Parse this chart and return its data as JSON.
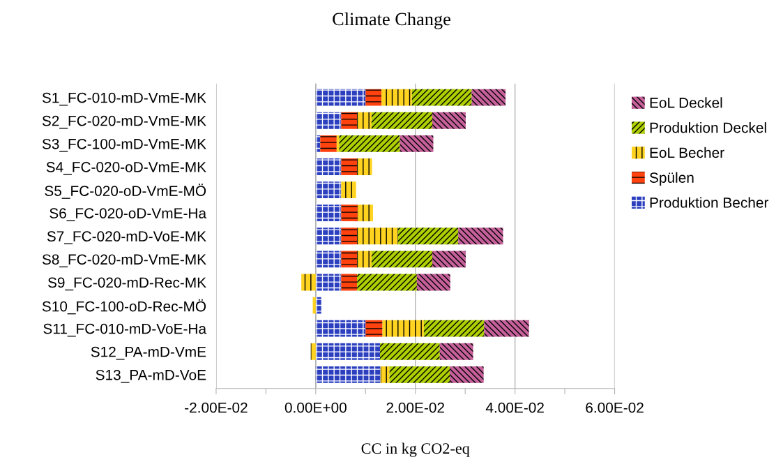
{
  "chart_data": {
    "type": "bar",
    "orientation": "horizontal",
    "stacked": true,
    "title": "Climate Change",
    "xlabel": "CC in kg CO2-eq",
    "categories": [
      "S1_FC-010-mD-VmE-MK",
      "S2_FC-020-mD-VmE-MK",
      "S3_FC-100-mD-VmE-MK",
      "S4_FC-020-oD-VmE-MK",
      "S5_FC-020-oD-VmE-MÖ",
      "S6_FC-020-oD-VmE-Ha",
      "S7_FC-020-mD-VoE-MK",
      "S8_FC-020-mD-VmE-MK",
      "S9_FC-020-mD-Rec-MK",
      "S10_FC-100-oD-Rec-MÖ",
      "S11_FC-010-mD-VoE-Ha",
      "S12_PA-mD-VmE",
      "S13_PA-mD-VoE"
    ],
    "series": [
      {
        "name": "Produktion Becher",
        "color": "#2b3fbf",
        "values": [
          0.01,
          0.0051,
          0.0009,
          0.0051,
          0.0051,
          0.0051,
          0.0051,
          0.0051,
          0.0051,
          0.0011,
          0.01,
          0.0129,
          0.013
        ]
      },
      {
        "name": "Spülen",
        "color": "#ff420e",
        "values": [
          0.0032,
          0.0032,
          0.0033,
          0.0032,
          0,
          0.0033,
          0.0032,
          0.0032,
          0.0032,
          0,
          0.0034,
          0,
          0
        ]
      },
      {
        "name": "EoL Becher",
        "color": "#ffd320",
        "values": [
          0.0061,
          0.0029,
          0.0005,
          0.003,
          0.003,
          0.0031,
          0.0082,
          0.0029,
          -0.0029,
          -0.0006,
          0.0083,
          -0.001,
          0.0018
        ]
      },
      {
        "name": "Produktion Deckel",
        "color": "#aecf00",
        "values": [
          0.012,
          0.0122,
          0.0122,
          0,
          0,
          0,
          0.0121,
          0.0122,
          0.012,
          0,
          0.0121,
          0.012,
          0.0121
        ]
      },
      {
        "name": "EoL Deckel",
        "color": "#c5609a",
        "values": [
          0.0068,
          0.0067,
          0.0067,
          0,
          0,
          0,
          0.009,
          0.0067,
          0.0067,
          0,
          0.009,
          0.0067,
          0.0068
        ]
      }
    ],
    "xlim": [
      -0.02,
      0.06
    ],
    "xticks": [
      {
        "value": -0.02,
        "label": "-2.00E-02"
      },
      {
        "value": -0.01,
        "label": null
      },
      {
        "value": 0,
        "label": "0.00E+00"
      },
      {
        "value": 0.01,
        "label": null
      },
      {
        "value": 0.02,
        "label": "2.00E-02"
      },
      {
        "value": 0.03,
        "label": null
      },
      {
        "value": 0.04,
        "label": "4.00E-02"
      },
      {
        "value": 0.05,
        "label": null
      },
      {
        "value": 0.06,
        "label": "6.00E-02"
      }
    ],
    "grid": "x",
    "legend": "right"
  }
}
